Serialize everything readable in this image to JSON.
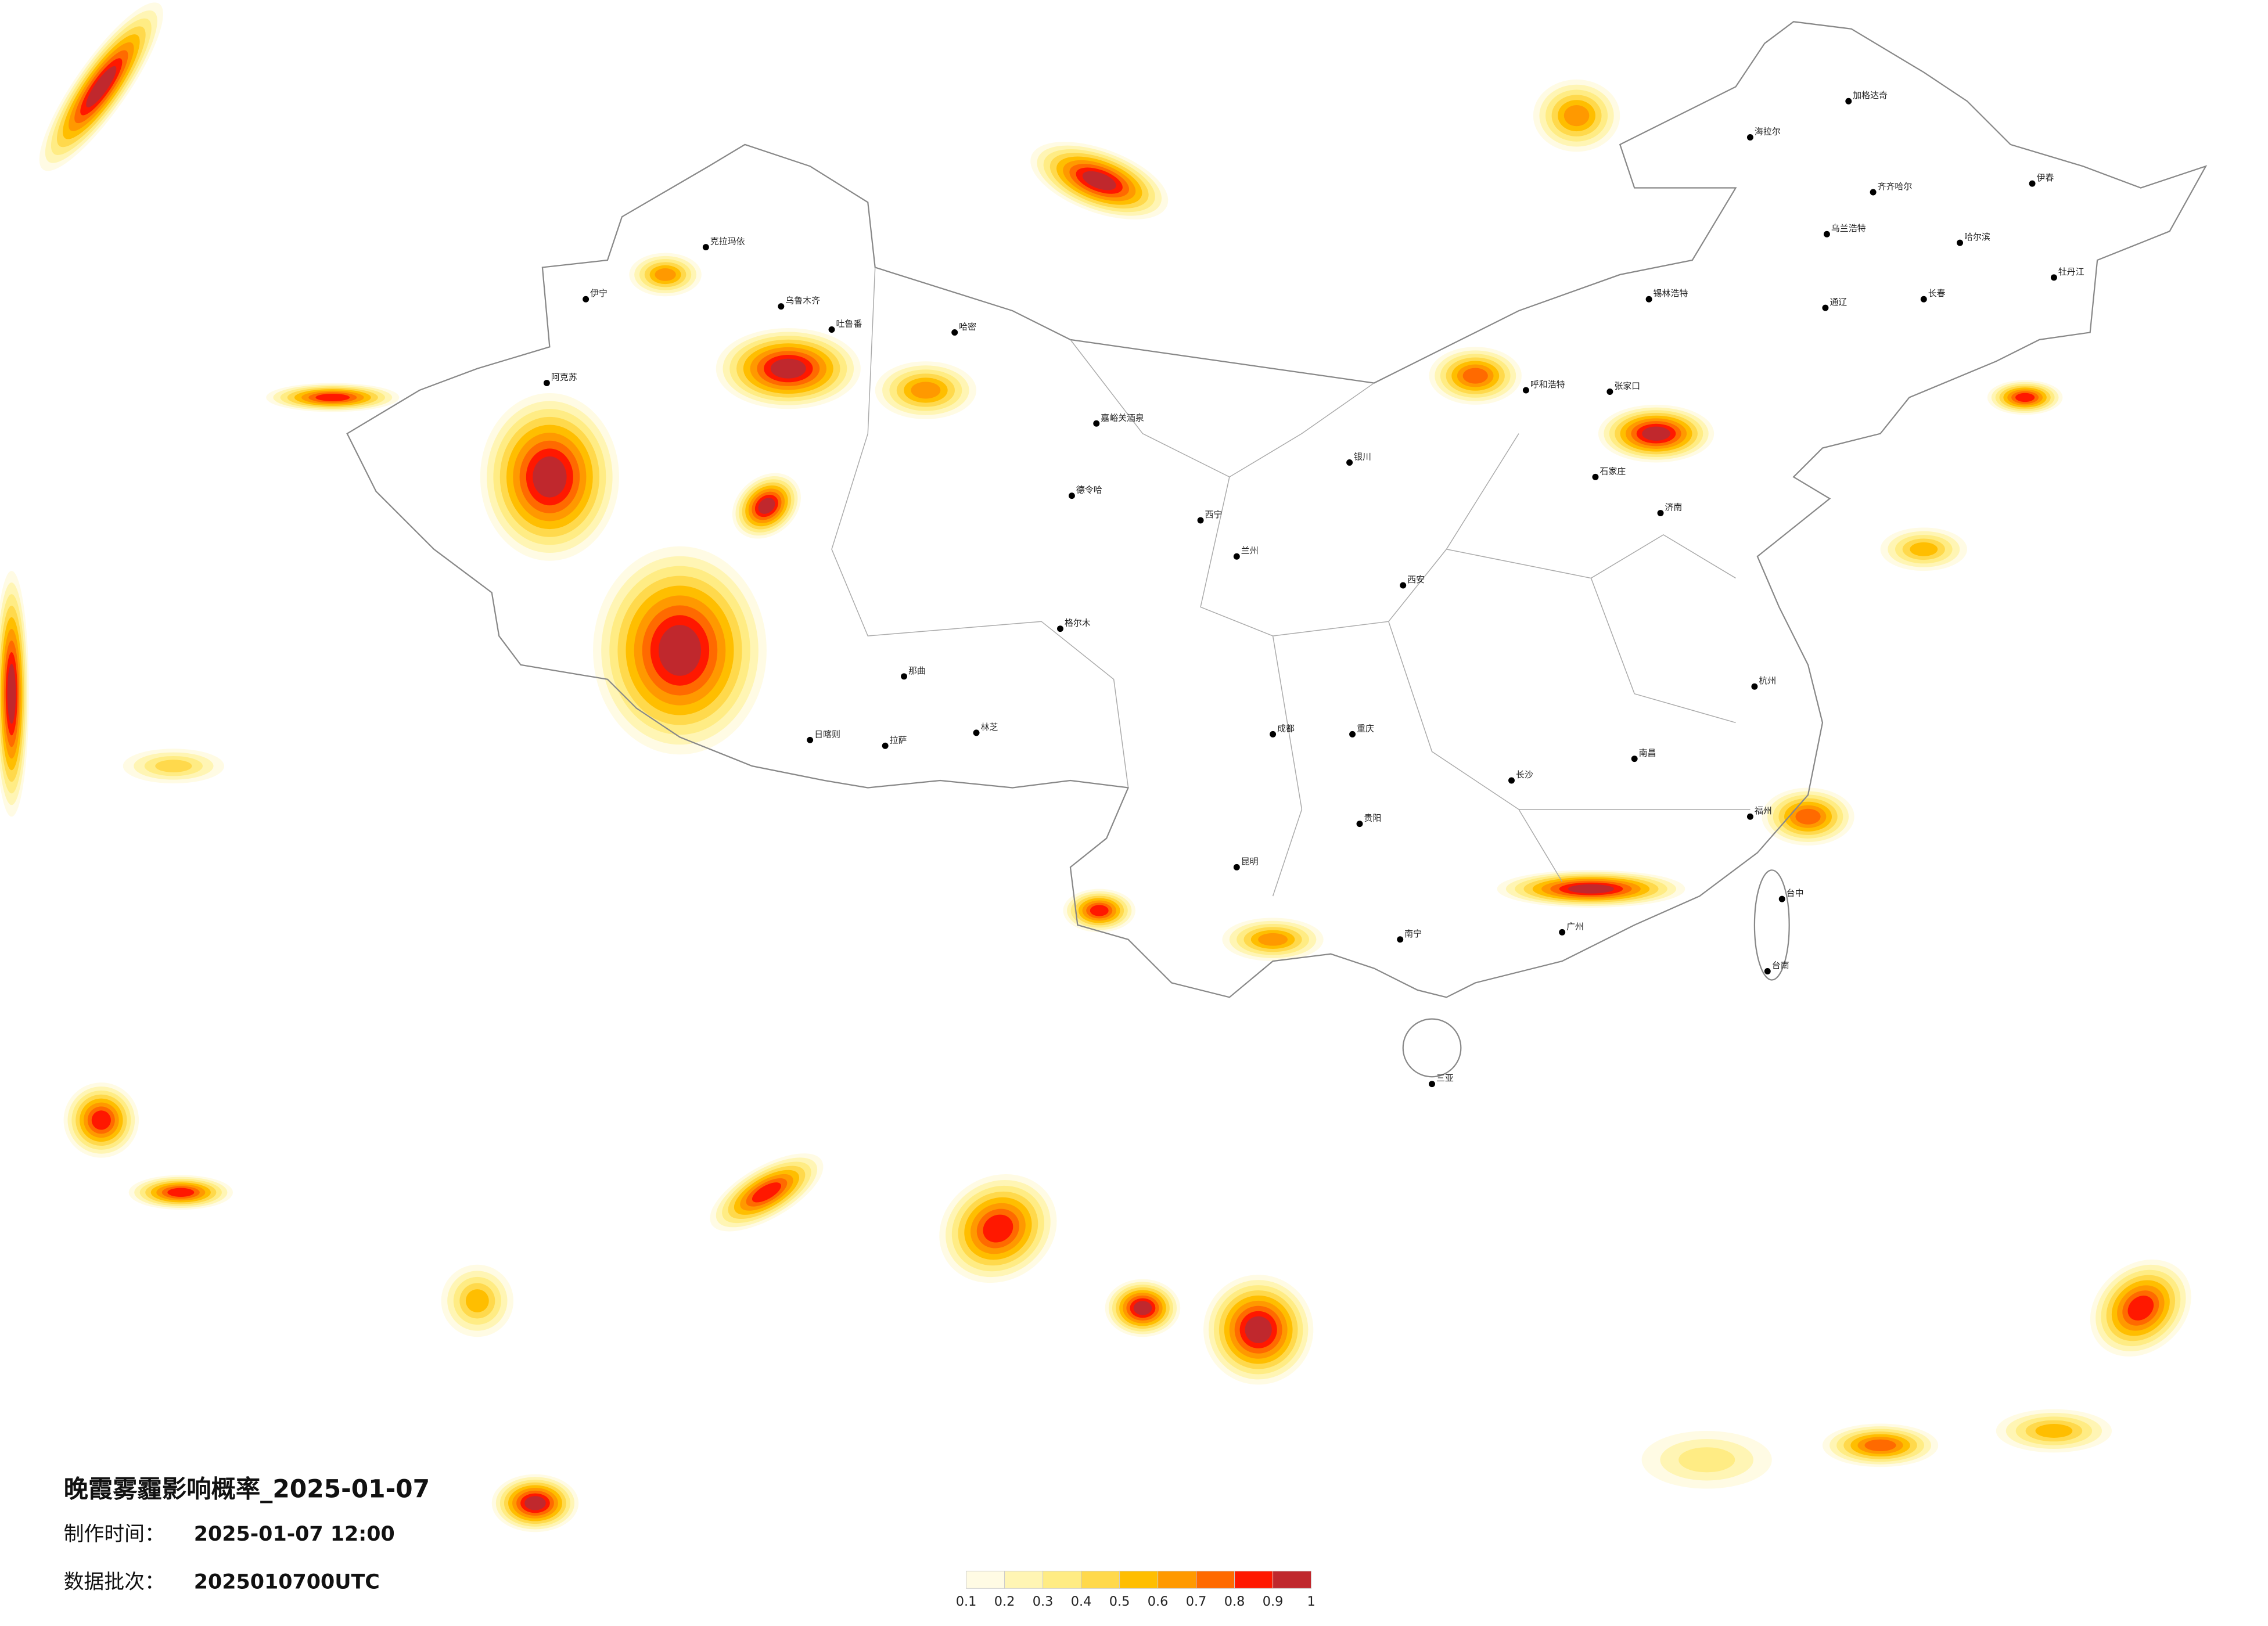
{
  "title": "晚霞雾霾影响概率_2025-01-07",
  "production_time": {
    "label": "制作时间：",
    "value": "2025-01-07 12:00"
  },
  "batch": {
    "label": "数据批次：",
    "value": "2025010700UTC"
  },
  "legend": {
    "ticks": [
      0.1,
      0.2,
      0.3,
      0.4,
      0.5,
      0.6,
      0.7,
      0.8,
      0.9,
      1
    ],
    "colors": [
      "#fffbe4",
      "#fff5b4",
      "#ffec84",
      "#ffd94c",
      "#ffbe00",
      "#ff9900",
      "#ff6a00",
      "#ff1800",
      "#c0282d"
    ]
  },
  "cities": [
    "乌鲁木齐",
    "吐鲁番",
    "哈密",
    "阿克苏",
    "伊宁",
    "克拉玛依",
    "拉萨",
    "日喀则",
    "那曲",
    "林芝",
    "格尔木",
    "德令哈",
    "嘉峪关酒泉",
    "西宁",
    "兰州",
    "银川",
    "呼和浩特",
    "张家口",
    "石家庄",
    "济南",
    "西安",
    "成都",
    "重庆",
    "贵阳",
    "昆明",
    "南宁",
    "广州",
    "长沙",
    "南昌",
    "杭州",
    "福州",
    "台中",
    "台南",
    "三亚",
    "哈尔滨",
    "长春",
    "齐齐哈尔",
    "海拉尔",
    "加格达奇",
    "伊春",
    "牡丹江",
    "锡林浩特",
    "乌兰浩特",
    "通辽"
  ]
}
